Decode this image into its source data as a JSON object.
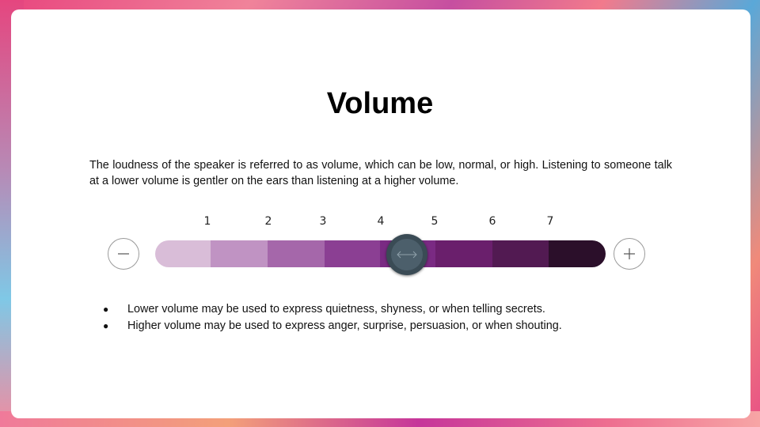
{
  "slide": {
    "title": "Volume",
    "description": "The loudness of the speaker is referred to as volume, which can be low, normal, or high. Listening to someone talk at a lower volume is gentler on the ears than listening at a higher volume."
  },
  "volume_slider": {
    "levels": [
      "1",
      "2",
      "3",
      "4",
      "5",
      "6",
      "7"
    ],
    "value": 4.5,
    "segment_colors": [
      "#d9bdd8",
      "#c093c3",
      "#a567aa",
      "#8b3f93",
      "#7a2a83",
      "#6a1f6c",
      "#521a52",
      "#2b0f2a"
    ],
    "decrease_icon": "minus-icon",
    "increase_icon": "plus-icon",
    "knob_icon": "left-right-arrow-icon"
  },
  "bullets": [
    "Lower volume may be used to express quietness, shyness, or when telling secrets.",
    "Higher volume may be used to express anger, surprise, persuasion, or when shouting."
  ]
}
